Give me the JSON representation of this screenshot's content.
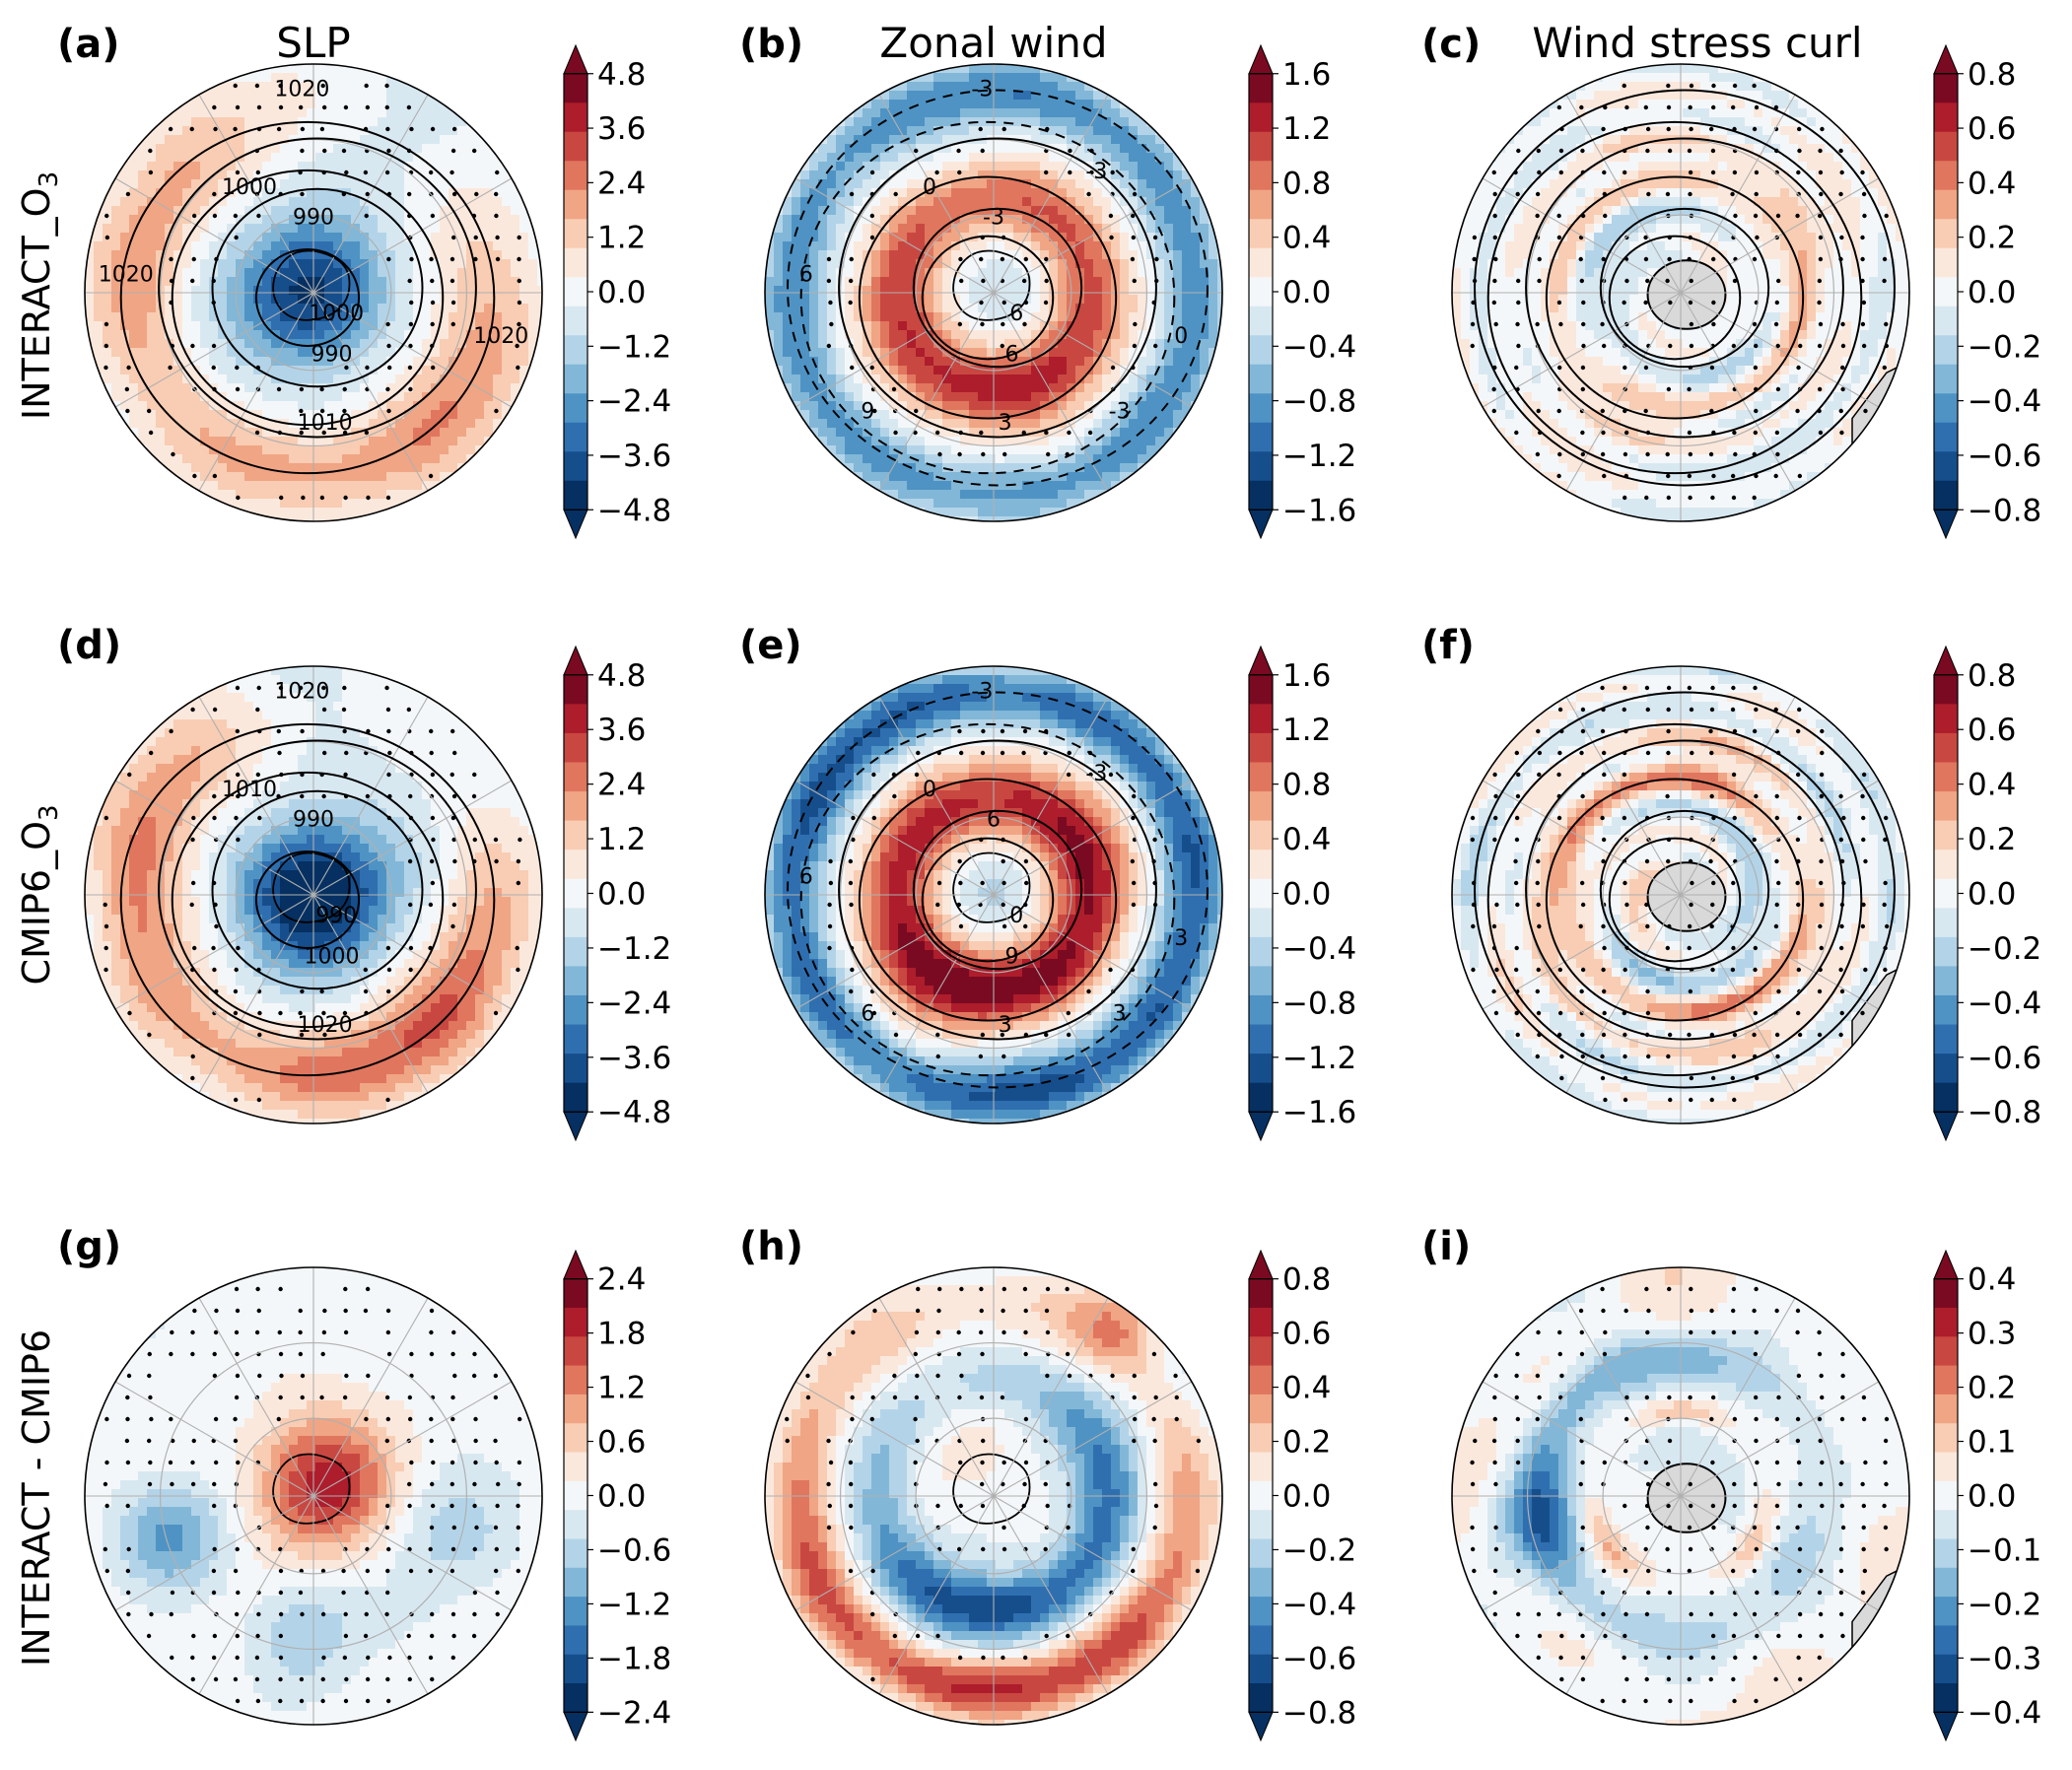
{
  "figure": {
    "column_titles": [
      "SLP",
      "Zonal wind",
      "Wind stress curl"
    ],
    "row_titles": [
      "INTERACT_O",
      "CMIP6_O",
      "INTERACT - CMIP6"
    ],
    "row_title_subscripts": [
      "3",
      "3",
      ""
    ]
  },
  "colors": {
    "diverging_scale": [
      "#053061",
      "#164e8c",
      "#2f6fb0",
      "#4f93c4",
      "#82b7d8",
      "#b3d4e8",
      "#d8e8f1",
      "#f4f7f9",
      "#fbe8dc",
      "#f8cdb3",
      "#f0a585",
      "#e0765e",
      "#c94741",
      "#ad1d2c",
      "#7a0a21"
    ],
    "land": "#d9d9d9",
    "coastline": "#000000",
    "stipple": "#000000",
    "grid": "#b0b0b0"
  },
  "chart_data": [
    {
      "type": "heatmap",
      "panel": "(a)",
      "variable": "SLP",
      "experiment": "INTERACT_O3",
      "colorbar_ticks": [
        "4.8",
        "3.6",
        "2.4",
        "1.2",
        "0.0",
        "−1.2",
        "−2.4",
        "−3.6",
        "−4.8"
      ],
      "pattern": "slp",
      "amplitude": 0.9,
      "land": false,
      "contour_labels": [
        "1020",
        "1000",
        "990",
        "1000",
        "990",
        "1010",
        "1020",
        "1020"
      ]
    },
    {
      "type": "heatmap",
      "panel": "(b)",
      "variable": "Zonal wind",
      "experiment": "INTERACT_O3",
      "colorbar_ticks": [
        "1.6",
        "1.2",
        "0.8",
        "0.4",
        "0.0",
        "−0.4",
        "−0.8",
        "−1.2",
        "−1.6"
      ],
      "pattern": "wind",
      "amplitude": 0.75,
      "land": false,
      "contour_labels": [
        "-3",
        "0",
        "-3",
        "6",
        "6",
        "3",
        "0",
        "6",
        "-3",
        "-3",
        "9"
      ]
    },
    {
      "type": "heatmap",
      "panel": "(c)",
      "variable": "Wind stress curl",
      "experiment": "INTERACT_O3",
      "colorbar_ticks": [
        "0.8",
        "0.6",
        "0.4",
        "0.2",
        "0.0",
        "−0.2",
        "−0.4",
        "−0.6",
        "−0.8"
      ],
      "pattern": "curl",
      "amplitude": 0.5,
      "land": true,
      "contour_labels": []
    },
    {
      "type": "heatmap",
      "panel": "(d)",
      "variable": "SLP",
      "experiment": "CMIP6_O3",
      "colorbar_ticks": [
        "4.8",
        "3.6",
        "2.4",
        "1.2",
        "0.0",
        "−1.2",
        "−2.4",
        "−3.6",
        "−4.8"
      ],
      "pattern": "slp",
      "amplitude": 1.15,
      "land": false,
      "contour_labels": [
        "1020",
        "1010",
        "990",
        "990",
        "1000",
        "1020"
      ]
    },
    {
      "type": "heatmap",
      "panel": "(e)",
      "variable": "Zonal wind",
      "experiment": "CMIP6_O3",
      "colorbar_ticks": [
        "1.6",
        "1.2",
        "0.8",
        "0.4",
        "0.0",
        "−0.4",
        "−0.8",
        "−1.2",
        "−1.6"
      ],
      "pattern": "wind",
      "amplitude": 1.0,
      "land": false,
      "contour_labels": [
        "-3",
        "0",
        "6",
        "0",
        "9",
        "3",
        "3",
        "6",
        "-3",
        "3",
        "6"
      ]
    },
    {
      "type": "heatmap",
      "panel": "(f)",
      "variable": "Wind stress curl",
      "experiment": "CMIP6_O3",
      "colorbar_ticks": [
        "0.8",
        "0.6",
        "0.4",
        "0.2",
        "0.0",
        "−0.2",
        "−0.4",
        "−0.6",
        "−0.8"
      ],
      "pattern": "curl",
      "amplitude": 0.7,
      "land": true,
      "contour_labels": []
    },
    {
      "type": "heatmap",
      "panel": "(g)",
      "variable": "SLP",
      "experiment": "INTERACT - CMIP6",
      "colorbar_ticks": [
        "2.4",
        "1.8",
        "1.2",
        "0.6",
        "0.0",
        "−0.6",
        "−1.2",
        "−1.8",
        "−2.4"
      ],
      "pattern": "slpdiff",
      "amplitude": 0.85,
      "land": false,
      "contour_labels": []
    },
    {
      "type": "heatmap",
      "panel": "(h)",
      "variable": "Zonal wind",
      "experiment": "INTERACT - CMIP6",
      "colorbar_ticks": [
        "0.8",
        "0.6",
        "0.4",
        "0.2",
        "0.0",
        "−0.2",
        "−0.4",
        "−0.6",
        "−0.8"
      ],
      "pattern": "winddiff",
      "amplitude": 0.85,
      "land": false,
      "contour_labels": []
    },
    {
      "type": "heatmap",
      "panel": "(i)",
      "variable": "Wind stress curl",
      "experiment": "INTERACT - CMIP6",
      "colorbar_ticks": [
        "0.4",
        "0.3",
        "0.2",
        "0.1",
        "0.0",
        "−0.1",
        "−0.2",
        "−0.3",
        "−0.4"
      ],
      "pattern": "curldiff",
      "amplitude": 0.75,
      "land": true,
      "contour_labels": []
    }
  ]
}
